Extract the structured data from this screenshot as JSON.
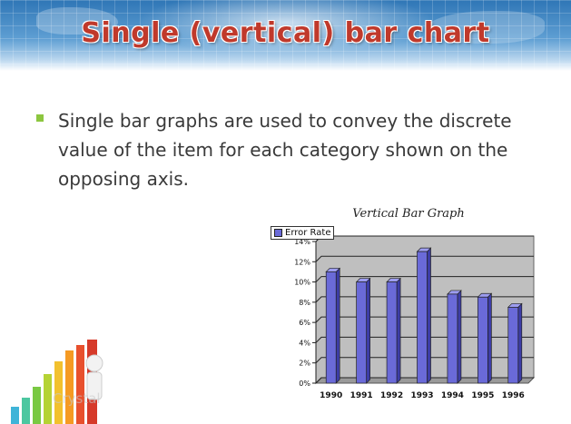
{
  "slide": {
    "title": "Single (vertical) bar chart",
    "bullet": "Single bar graphs are used to convey the discrete value of the item for each category shown on the opposing axis."
  },
  "chart_data": {
    "type": "bar",
    "title": "Vertical Bar Graph",
    "categories": [
      "1990",
      "1991",
      "1992",
      "1993",
      "1994",
      "1995",
      "1996"
    ],
    "series": [
      {
        "name": "Error Rate",
        "values": [
          11,
          10,
          10,
          13,
          8.8,
          8.5,
          7.5
        ]
      }
    ],
    "yticks": [
      "0%",
      "2%",
      "4%",
      "6%",
      "8%",
      "10%",
      "12%",
      "14%"
    ],
    "ylim": [
      0,
      14
    ],
    "grid": true,
    "legend": "top-left",
    "colors": {
      "bar": "#6a6ad8",
      "bar_side": "#3d3da6",
      "bar_top": "#9d9df0",
      "plot_bg": "#bfbfbf"
    }
  },
  "watermark": "CrystalGraphics",
  "watermark_bottom": "Crystal"
}
